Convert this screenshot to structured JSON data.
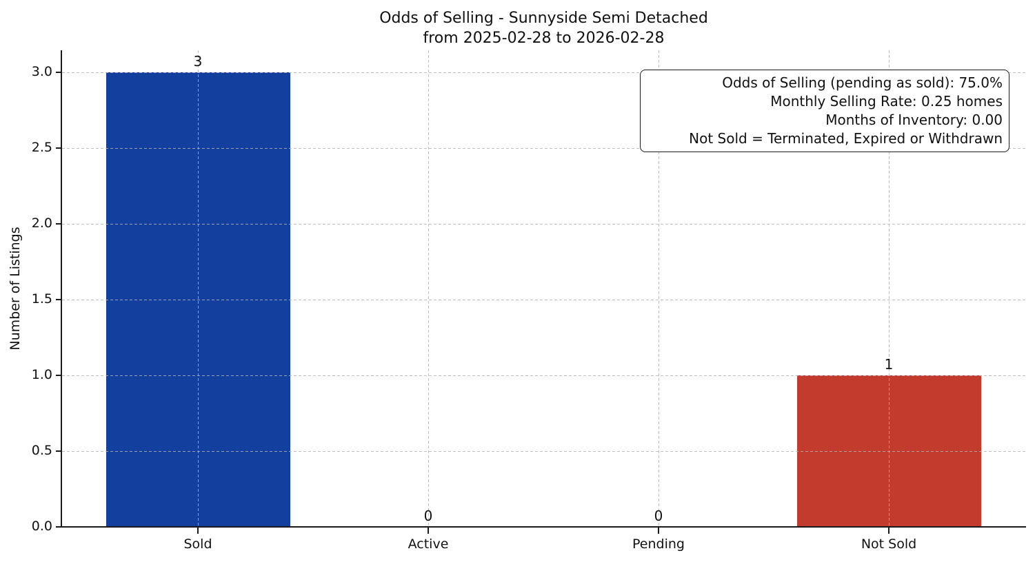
{
  "chart_data": {
    "type": "bar",
    "title": "Odds of Selling - Sunnyside Semi Detached",
    "subtitle": "from 2025-02-28 to 2026-02-28",
    "xlabel": "",
    "ylabel": "Number of Listings",
    "categories": [
      "Sold",
      "Active",
      "Pending",
      "Not Sold"
    ],
    "values": [
      3,
      0,
      0,
      1
    ],
    "bars": [
      {
        "label": "Sold",
        "value": 3,
        "value_label": "3",
        "color": "#13409e"
      },
      {
        "label": "Active",
        "value": 0,
        "value_label": "0",
        "color": null
      },
      {
        "label": "Pending",
        "value": 0,
        "value_label": "0",
        "color": null
      },
      {
        "label": "Not Sold",
        "value": 1,
        "value_label": "1",
        "color": "#c23b2c"
      }
    ],
    "yticks": [
      {
        "value": 0.0,
        "label": "0.0"
      },
      {
        "value": 0.5,
        "label": "0.5"
      },
      {
        "value": 1.0,
        "label": "1.0"
      },
      {
        "value": 1.5,
        "label": "1.5"
      },
      {
        "value": 2.0,
        "label": "2.0"
      },
      {
        "value": 2.5,
        "label": "2.5"
      },
      {
        "value": 3.0,
        "label": "3.0"
      }
    ],
    "ylim": [
      0,
      3.15
    ],
    "grid": "dashed-light-gray-both-axes",
    "legend": "none",
    "annotation": {
      "lines": [
        "Odds of Selling (pending as sold): 75.0%",
        "Monthly Selling Rate: 0.25 homes",
        "Months of Inventory: 0.00",
        "Not Sold = Terminated, Expired or Withdrawn"
      ],
      "stats": {
        "odds_of_selling_pending_as_sold_pct": 75.0,
        "monthly_selling_rate_homes": 0.25,
        "months_of_inventory": 0.0
      }
    },
    "colors": {
      "sold_bar": "#13409e",
      "not_sold_bar": "#c23b2c",
      "spine": "#1a1a1a",
      "grid": "#b2b2b2",
      "background": "#ffffff",
      "text": "#111111"
    }
  }
}
